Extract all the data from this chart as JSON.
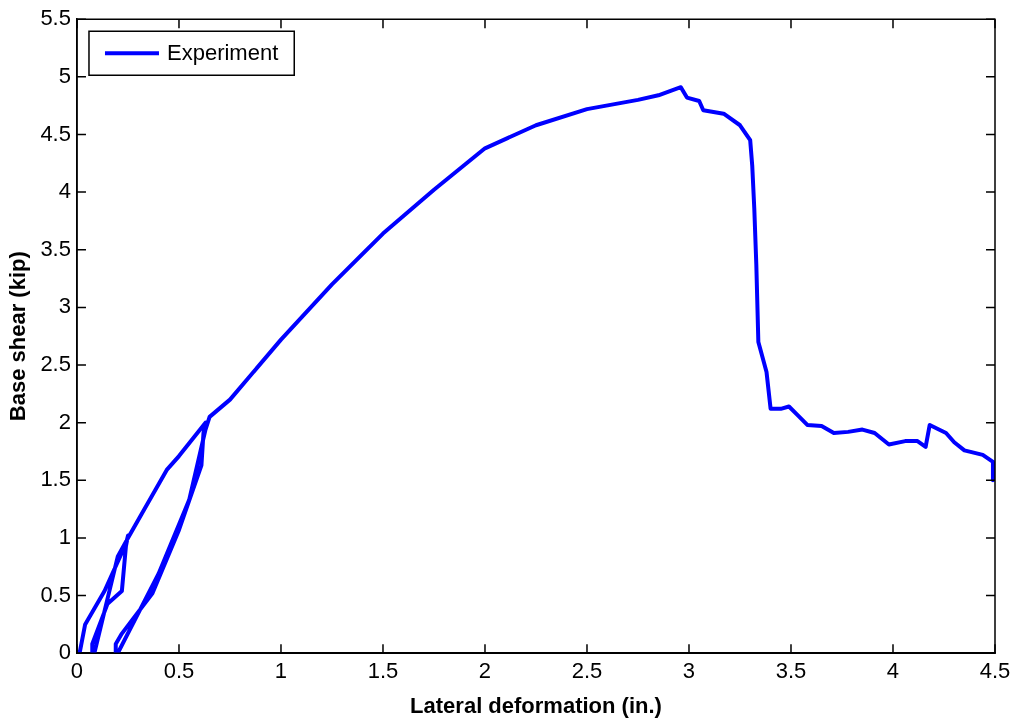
{
  "chart_data": {
    "type": "line",
    "xlabel": "Lateral deformation (in.)",
    "ylabel": "Base shear (kip)",
    "xlim": [
      0,
      4.5
    ],
    "xticks": [
      0,
      0.5,
      1,
      1.5,
      2,
      2.5,
      3,
      3.5,
      4,
      4.5
    ],
    "ylim": [
      0,
      5.5
    ],
    "yticks": [
      0,
      0.5,
      1,
      1.5,
      2,
      2.5,
      3,
      3.5,
      4,
      4.5,
      5,
      5.5
    ],
    "grid": false,
    "legend": "top left",
    "marker": "none",
    "line_style": "solid",
    "series": [
      {
        "name": "Experiment",
        "color": "#0000ff",
        "x": [
          0,
          0.015,
          0.04,
          0.135,
          0.24,
          0.25,
          0.24,
          0.22,
          0.15,
          0.075,
          0.075,
          0.085,
          0.2,
          0.25,
          0.44,
          0.5,
          0.63,
          0.62,
          0.61,
          0.5,
          0.37,
          0.22,
          0.19,
          0.19,
          0.2,
          0.4,
          0.55,
          0.63,
          0.65,
          0.75,
          1.0,
          1.25,
          1.5,
          1.75,
          2.0,
          2.25,
          2.5,
          2.75,
          2.85,
          2.96,
          2.99,
          3.05,
          3.07,
          3.17,
          3.25,
          3.3,
          3.31,
          3.32,
          3.33,
          3.34,
          3.38,
          3.4,
          3.45,
          3.49,
          3.53,
          3.58,
          3.65,
          3.71,
          3.78,
          3.85,
          3.91,
          3.98,
          4.06,
          4.12,
          4.16,
          4.18,
          4.26,
          4.3,
          4.35,
          4.44,
          4.49,
          4.49
        ],
        "values": [
          0,
          0.02,
          0.25,
          0.54,
          0.95,
          1.02,
          0.93,
          0.54,
          0.43,
          0.08,
          0,
          0,
          0.84,
          1.0,
          1.59,
          1.71,
          2.0,
          1.91,
          1.63,
          1.07,
          0.52,
          0.17,
          0.08,
          0,
          0,
          0.69,
          1.33,
          1.94,
          2.05,
          2.2,
          2.72,
          3.2,
          3.64,
          4.02,
          4.38,
          4.58,
          4.72,
          4.8,
          4.84,
          4.91,
          4.82,
          4.79,
          4.71,
          4.68,
          4.58,
          4.45,
          4.23,
          3.86,
          3.37,
          2.7,
          2.44,
          2.12,
          2.12,
          2.14,
          2.07,
          1.98,
          1.97,
          1.91,
          1.92,
          1.94,
          1.91,
          1.81,
          1.84,
          1.84,
          1.79,
          1.98,
          1.91,
          1.83,
          1.76,
          1.72,
          1.66,
          1.5
        ]
      }
    ]
  }
}
